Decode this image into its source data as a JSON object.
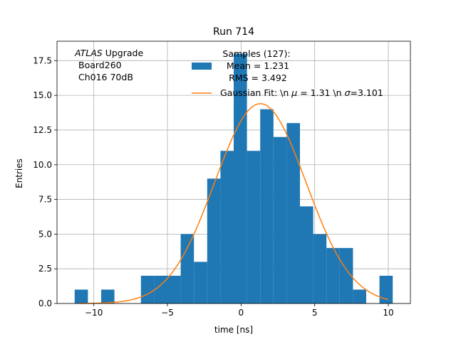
{
  "chart_data": {
    "type": "bar",
    "title": "Run 714",
    "xlabel": "time [ns]",
    "ylabel": "Entries",
    "xlim": [
      -12.5,
      11.5
    ],
    "ylim": [
      0,
      18.9
    ],
    "xticks": [
      -10,
      -5,
      0,
      5,
      10
    ],
    "xtick_labels": [
      "−10",
      "−5",
      "0",
      "5",
      "10"
    ],
    "yticks": [
      0,
      2.5,
      5,
      7.5,
      10,
      12.5,
      15,
      17.5
    ],
    "ytick_labels": [
      "0.0",
      "2.5",
      "5.0",
      "7.5",
      "10.0",
      "12.5",
      "15.0",
      "17.5"
    ],
    "grid": true,
    "legend_position": "top-right",
    "annotation": {
      "italic": "ATLAS",
      "rest": " Upgrade",
      "line2": "Board260",
      "line3": "Ch016 70dB"
    },
    "series": [
      {
        "name": "Samples (127):\n Mean = 1.231\n RMS = 3.492",
        "legend_lines": [
          "Samples (127):",
          " Mean = 1.231",
          " RMS = 3.492"
        ],
        "kind": "histogram",
        "color": "#1f77b4",
        "bin_edges": [
          -11.3,
          -10.4,
          -9.5,
          -8.6,
          -7.7,
          -6.8,
          -5.9,
          -5.0,
          -4.1,
          -3.2,
          -2.3,
          -1.4,
          -0.5,
          0.4,
          1.3,
          2.2,
          3.1,
          4.0,
          4.9,
          5.8,
          6.7,
          7.6,
          8.5,
          9.4,
          10.3
        ],
        "counts": [
          1,
          0,
          1,
          0,
          0,
          2,
          2,
          2,
          5,
          3,
          9,
          11,
          18,
          11,
          14,
          12,
          13,
          7,
          5,
          4,
          4,
          1,
          0,
          2
        ]
      },
      {
        "name": "Gaussian Fit: \\n μ = 1.31 \\n σ=3.101",
        "legend_text": "Gaussian Fit: \\n ",
        "legend_mu": "μ",
        "legend_mid": " = 1.31 \\n ",
        "legend_sigma": "σ",
        "legend_end": "=3.101",
        "kind": "line",
        "color": "#ff7f0e",
        "mu": 1.31,
        "sigma": 3.101,
        "amplitude": 14.4,
        "x_range": [
          -11,
          10
        ]
      }
    ]
  }
}
